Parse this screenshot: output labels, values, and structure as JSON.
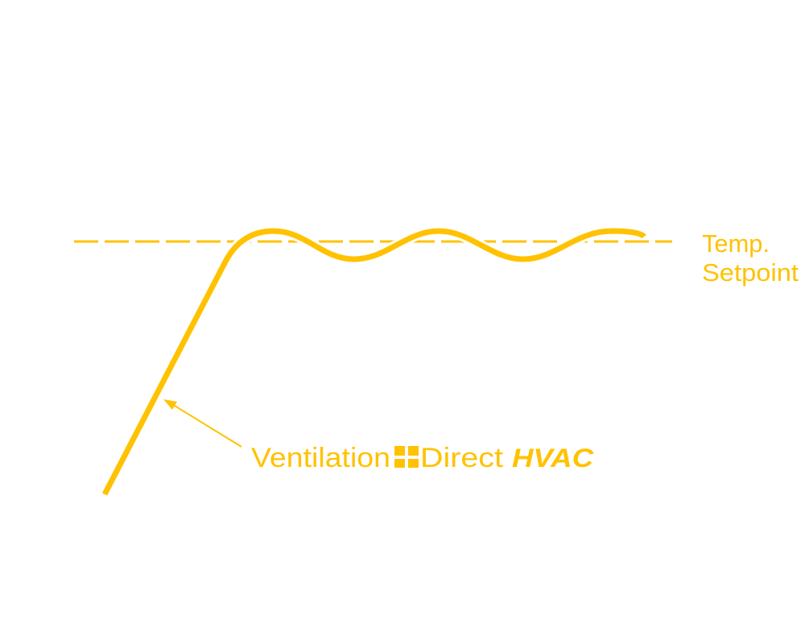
{
  "setpoint_label": [
    "Temp.",
    "Setpoint"
  ],
  "brand": {
    "name": "Ventilation",
    "name2": "Direct",
    "tag": "HVAC"
  }
}
